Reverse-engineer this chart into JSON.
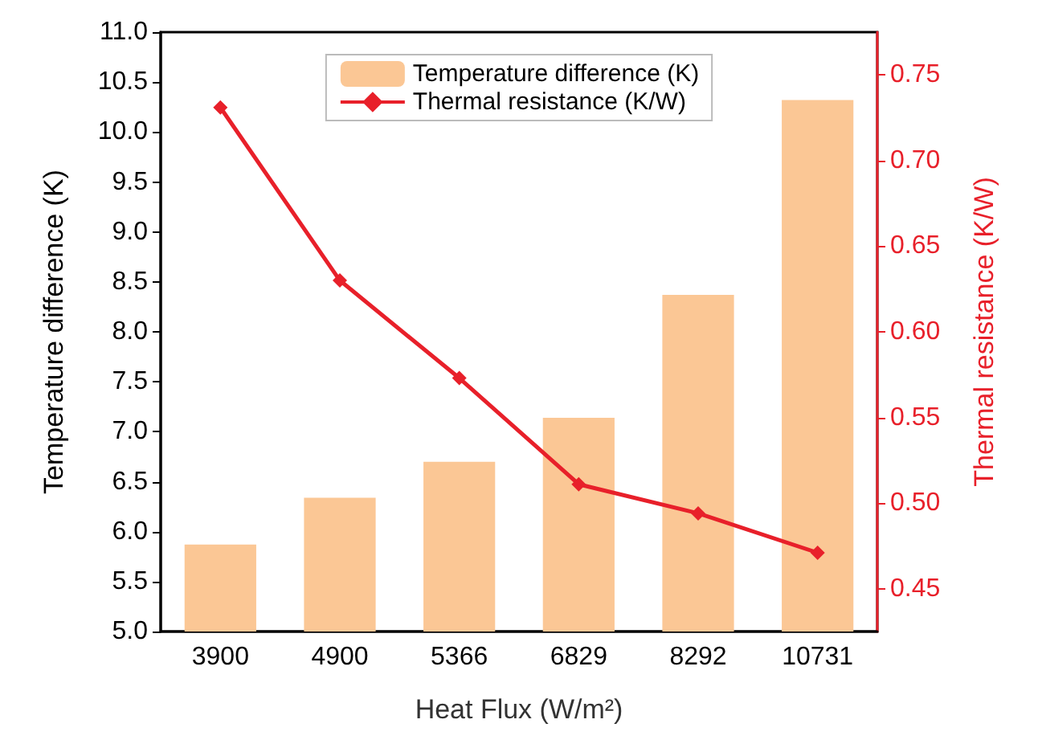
{
  "chart_data": {
    "type": "bar",
    "xlabel": "Heat Flux (W/m²)",
    "ylabel": "Temperature difference (K)",
    "y2label": "Thermal resistance (K/W)",
    "categories": [
      "3900",
      "4900",
      "5366",
      "6829",
      "8292",
      "10731"
    ],
    "series": [
      {
        "name": "Temperature difference (K)",
        "color": "#fbc795",
        "values": [
          5.87,
          6.34,
          6.7,
          7.14,
          8.37,
          10.32
        ]
      },
      {
        "name": "Thermal resistance (K/W)",
        "type": "line",
        "axis": "y2",
        "color": "#e8202a",
        "marker": "diamond",
        "values": [
          0.731,
          0.63,
          0.573,
          0.511,
          0.494,
          0.471
        ]
      }
    ],
    "ylim": [
      5,
      11
    ],
    "yticks": [
      {
        "value": 5,
        "label": "5.0"
      },
      5.5,
      {
        "value": 6,
        "label": "6.0"
      },
      6.5,
      {
        "value": 7,
        "label": "7.0"
      },
      7.5,
      {
        "value": 8,
        "label": "8.0"
      },
      8.5,
      {
        "value": 9,
        "label": "9.0"
      },
      9.5,
      {
        "value": 10,
        "label": "10.0"
      },
      10.5,
      {
        "value": 11,
        "label": "11.0"
      }
    ],
    "y2lim": [
      0.425,
      0.775
    ],
    "y2ticks": [
      0.45,
      {
        "value": 0.5,
        "label": "0.50"
      },
      0.55,
      {
        "value": 0.6,
        "label": "0.60"
      },
      0.65,
      {
        "value": 0.7,
        "label": "0.70"
      },
      0.75
    ],
    "legend": "top",
    "grid": false
  }
}
